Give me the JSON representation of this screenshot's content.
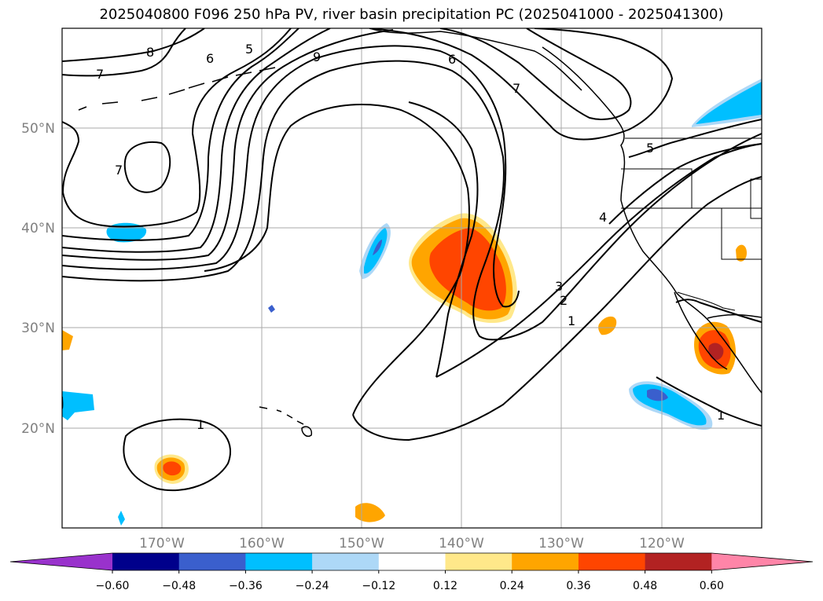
{
  "title": "2025040800 F096 250 hPa PV, river basin precipitation PC (2025041000 - 2025041300)",
  "map": {
    "latitude_labels": [
      "50°N",
      "40°N",
      "30°N",
      "20°N"
    ],
    "longitude_labels": [
      "170°W",
      "160°W",
      "150°W",
      "140°W",
      "130°W",
      "120°W"
    ],
    "extent": {
      "lon": [
        -180,
        -110
      ],
      "lat": [
        10,
        60
      ]
    },
    "gridlines": true,
    "pv_contour_labels": [
      "8",
      "7",
      "6",
      "5",
      "9",
      "6",
      "7",
      "7",
      "5",
      "4",
      "3",
      "2",
      "1",
      "1",
      "1"
    ]
  },
  "colorbar": {
    "tick_labels": [
      "−0.60",
      "−0.48",
      "−0.36",
      "−0.24",
      "−0.12",
      "0.12",
      "0.24",
      "0.36",
      "0.48",
      "0.60"
    ],
    "levels": [
      -0.6,
      -0.48,
      -0.36,
      -0.24,
      -0.12,
      0.12,
      0.24,
      0.36,
      0.48,
      0.6
    ],
    "colors": [
      "#9932cc",
      "#00008b",
      "#3a5fcd",
      "#00bfff",
      "#add8f7",
      "#ffffff",
      "#ffe88a",
      "#ffa500",
      "#ff4500",
      "#b22222",
      "#ff85a8"
    ],
    "extend": "both"
  }
}
